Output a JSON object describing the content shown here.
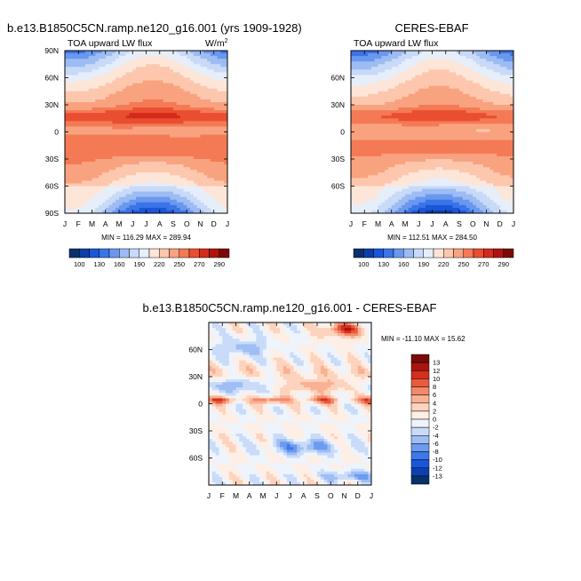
{
  "chart_data": [
    {
      "type": "heatmap",
      "id": "model",
      "title": "b.e13.B1850C5CN.ramp.ne120_g16.001 (yrs 1909-1928)",
      "subtitle": "TOA upward LW flux",
      "units_label": "W/m",
      "units_power": "2",
      "x_labels": [
        "J",
        "F",
        "M",
        "A",
        "M",
        "J",
        "J",
        "A",
        "S",
        "O",
        "N",
        "D",
        "J"
      ],
      "y_labels": [
        "90N",
        "60N",
        "30N",
        "0",
        "30S",
        "60S",
        "90S"
      ],
      "y_range": [
        90,
        -90
      ],
      "stats_text": "MIN = 116.29  MAX = 289.94",
      "min": 116.29,
      "max": 289.94,
      "colorbar_labels": [
        "100",
        "130",
        "160",
        "190",
        "220",
        "250",
        "270",
        "290"
      ]
    },
    {
      "type": "heatmap",
      "id": "obs",
      "title": "CERES-EBAF",
      "subtitle": "TOA upward LW flux",
      "x_labels": [
        "J",
        "F",
        "M",
        "A",
        "M",
        "J",
        "J",
        "A",
        "S",
        "O",
        "N",
        "D",
        "J"
      ],
      "y_labels": [
        "60N",
        "30N",
        "0",
        "30S",
        "60S"
      ],
      "y_range": [
        90,
        -90
      ],
      "stats_text": "MIN = 112.51  MAX = 284.50",
      "min": 112.51,
      "max": 284.5,
      "colorbar_labels": [
        "100",
        "130",
        "160",
        "190",
        "220",
        "250",
        "270",
        "290"
      ]
    },
    {
      "type": "heatmap",
      "id": "diff",
      "title": "b.e13.B1850C5CN.ramp.ne120_g16.001 - CERES-EBAF",
      "x_labels": [
        "J",
        "F",
        "M",
        "A",
        "M",
        "J",
        "J",
        "A",
        "S",
        "O",
        "N",
        "D",
        "J"
      ],
      "y_labels": [
        "60N",
        "30N",
        "0",
        "30S",
        "60S"
      ],
      "y_range": [
        90,
        -90
      ],
      "stats_text": "MIN = -11.10  MAX =  15.62",
      "min": -11.1,
      "max": 15.62,
      "colorbar_labels": [
        "13",
        "12",
        "10",
        "8",
        "6",
        "4",
        "2",
        "0",
        "-2",
        "-4",
        "-6",
        "-8",
        "-10",
        "-12",
        "-13"
      ]
    }
  ],
  "colors": {
    "abs_scale": [
      "#08306b",
      "#0a3fa6",
      "#1a56d9",
      "#3b74e8",
      "#6a98ef",
      "#9cbcf3",
      "#c8daf7",
      "#e6eefa",
      "#fde5d8",
      "#fcc7ad",
      "#f9a27f",
      "#f47a55",
      "#ea4e30",
      "#d42a1a",
      "#b0120f",
      "#7a0a08"
    ],
    "diff_scale": [
      "#08306b",
      "#0d3fb0",
      "#1a56d9",
      "#3d78ea",
      "#6c9bef",
      "#9ebef4",
      "#c9dbf8",
      "#eef4fc",
      "#fdeee6",
      "#fcd3bd",
      "#f9b194",
      "#f4886a",
      "#ea5a3c",
      "#d4301f",
      "#a8140f",
      "#7a0a08"
    ]
  }
}
